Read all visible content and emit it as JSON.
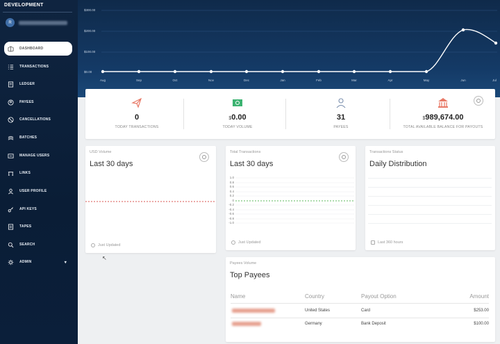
{
  "env_label": "DEVELOPMENT",
  "user": {
    "initials": "R"
  },
  "nav": [
    {
      "label": "DASHBOARD",
      "icon": "dashboard-icon"
    },
    {
      "label": "TRANSACTIONS",
      "icon": "list-icon"
    },
    {
      "label": "LEDGER",
      "icon": "ledger-icon"
    },
    {
      "label": "PAYEES",
      "icon": "user-icon"
    },
    {
      "label": "CANCELLATIONS",
      "icon": "cancel-icon"
    },
    {
      "label": "BATCHES",
      "icon": "batches-icon"
    },
    {
      "label": "MANAGE USERS",
      "icon": "users-icon"
    },
    {
      "label": "LINKS",
      "icon": "links-icon"
    },
    {
      "label": "USER PROFILE",
      "icon": "profile-icon"
    },
    {
      "label": "API KEYS",
      "icon": "key-icon"
    },
    {
      "label": "TAPES",
      "icon": "tapes-icon"
    },
    {
      "label": "SEARCH",
      "icon": "search-icon"
    },
    {
      "label": "ADMIN",
      "icon": "admin-icon"
    }
  ],
  "top_chart": {
    "y_ticks": [
      "$300.00",
      "$200.00",
      "$100.00",
      "$0.00"
    ],
    "months": [
      "Aug",
      "Sep",
      "Oct",
      "Nov",
      "Dec",
      "Jan",
      "Feb",
      "Mar",
      "Apr",
      "May",
      "Jun",
      "Jul"
    ]
  },
  "stats": {
    "transactions": {
      "value": "0",
      "label": "TODAY TRANSACTIONS"
    },
    "volume": {
      "currency": "$",
      "value": "0.00",
      "label": "TODAY VOLUME"
    },
    "payees": {
      "value": "31",
      "label": "PAYEES"
    },
    "balance": {
      "currency": "$",
      "value": "989,674.00",
      "label": "TOTAL AVAILABLE BALANCE FOR PAYOUTS"
    }
  },
  "usd_card": {
    "kicker": "USD Volume",
    "title": "Last 30 days",
    "footer": "Just Updated"
  },
  "tx_card": {
    "kicker": "Total Transactions",
    "title": "Last 30 days",
    "footer": "Just Updated",
    "y_ticks": [
      "1.0",
      "0.8",
      "0.6",
      "0.4",
      "0.2",
      "0",
      "-0.2",
      "-0.4",
      "-0.6",
      "-0.8",
      "-1.0"
    ]
  },
  "status_card": {
    "kicker": "Transactions Status",
    "title": "Daily Distribution",
    "footer": "Last 360 hours"
  },
  "payees_card": {
    "kicker": "Payees Volume",
    "title": "Top Payees",
    "columns": [
      "Name",
      "Country",
      "Payout Option",
      "Amount"
    ],
    "rows": [
      {
        "country": "United States",
        "option": "Card",
        "amount": "$253.00"
      },
      {
        "country": "Germany",
        "option": "Bank Deposit",
        "amount": "$100.00"
      }
    ]
  },
  "colors": {
    "accent": "#e87966",
    "usd_line": "#d9534f",
    "tx_line": "#5cb85c",
    "sidebar": "#0f2440"
  }
}
